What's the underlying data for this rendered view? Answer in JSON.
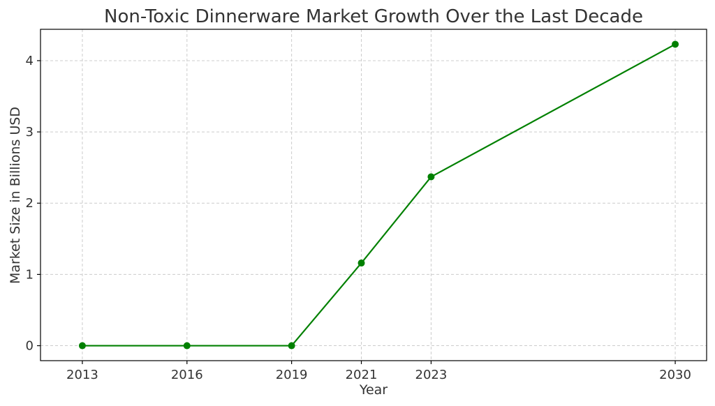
{
  "chart_data": {
    "type": "line",
    "title": "Non-Toxic Dinnerware Market Growth Over the Last Decade",
    "xlabel": "Year",
    "ylabel": "Market Size in Billions USD",
    "x": [
      2013,
      2016,
      2019,
      2021,
      2023,
      2030
    ],
    "x_tick_labels": [
      "2013",
      "2016",
      "2019",
      "2021",
      "2023",
      "2030"
    ],
    "y_ticks": [
      0,
      1,
      2,
      3,
      4
    ],
    "xlim": [
      2011.8,
      2030.9
    ],
    "ylim": [
      -0.21,
      4.44
    ],
    "grid": true,
    "series": [
      {
        "values": [
          0,
          0,
          0,
          1.16,
          2.37,
          4.23
        ],
        "color": "#008000",
        "marker": "circle"
      }
    ]
  }
}
